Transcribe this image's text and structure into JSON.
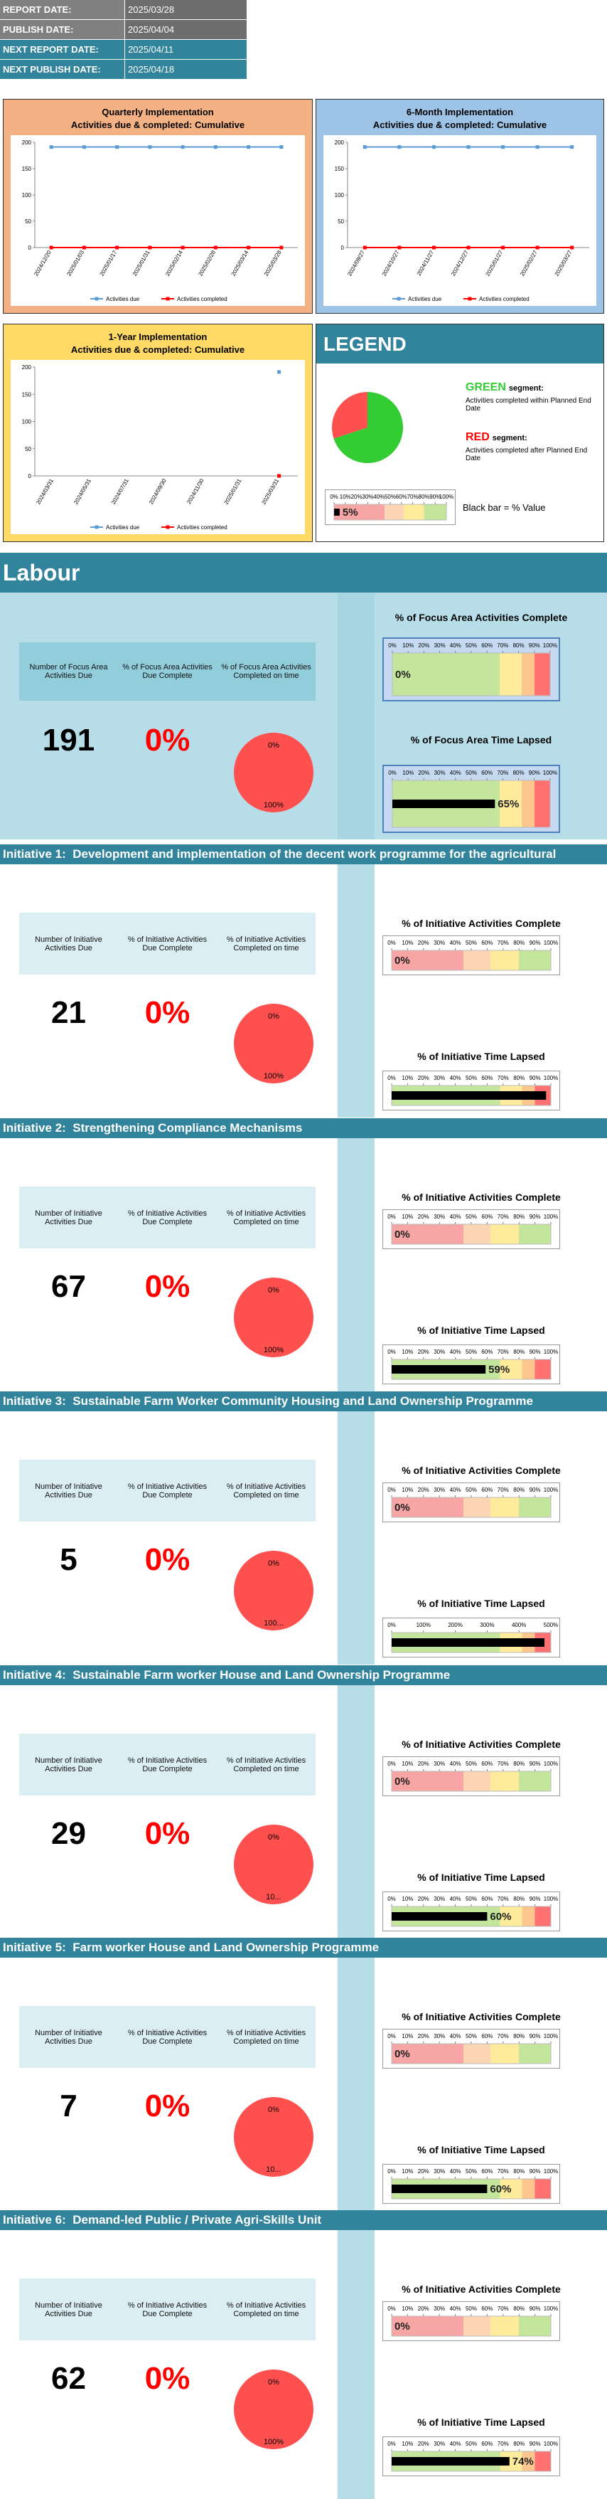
{
  "header": {
    "rows": [
      {
        "label": "REPORT DATE:",
        "value": "2025/03/28"
      },
      {
        "label": "PUBLISH DATE:",
        "value": "2025/04/04"
      },
      {
        "label": "NEXT REPORT DATE:",
        "value": "2025/04/11"
      },
      {
        "label": "NEXT PUBLISH DATE:",
        "value": "2025/04/18"
      }
    ]
  },
  "chart_data": [
    {
      "type": "line",
      "title": "Quarterly Implementation",
      "subtitle": "Activities due & completed: Cumulative",
      "categories": [
        "2024/12/20",
        "2025/01/03",
        "2025/01/17",
        "2025/01/31",
        "2025/02/14",
        "2025/02/28",
        "2025/03/14",
        "2025/03/28"
      ],
      "series": [
        {
          "name": "Activities due",
          "color": "#5b9bd5",
          "values": [
            191,
            191,
            191,
            191,
            191,
            191,
            191,
            191
          ]
        },
        {
          "name": "Activities completed",
          "color": "#ff0000",
          "values": [
            0,
            0,
            0,
            0,
            0,
            0,
            0,
            0
          ]
        }
      ],
      "ylim": [
        0,
        200
      ],
      "yticks": [
        0,
        50,
        100,
        150,
        200
      ]
    },
    {
      "type": "line",
      "title": "6-Month Implementation",
      "subtitle": "Activities due & completed: Cumulative",
      "categories": [
        "2024/09/27",
        "2024/10/27",
        "2024/11/27",
        "2024/12/27",
        "2025/01/27",
        "2025/02/27",
        "2025/03/27"
      ],
      "series": [
        {
          "name": "Activities due",
          "color": "#5b9bd5",
          "values": [
            191,
            191,
            191,
            191,
            191,
            191,
            191
          ]
        },
        {
          "name": "Activities completed",
          "color": "#ff0000",
          "values": [
            0,
            0,
            0,
            0,
            0,
            0,
            0
          ]
        }
      ],
      "ylim": [
        0,
        200
      ],
      "yticks": [
        0,
        50,
        100,
        150,
        200
      ]
    },
    {
      "type": "line",
      "title": "1-Year Implementation",
      "subtitle": "Activities due & completed: Cumulative",
      "categories": [
        "2024/03/31",
        "2024/05/31",
        "2024/07/31",
        "2024/09/30",
        "2024/11/30",
        "2025/01/31",
        "2025/03/31"
      ],
      "series": [
        {
          "name": "Activities due",
          "color": "#5b9bd5",
          "values": [
            null,
            null,
            null,
            null,
            null,
            null,
            191
          ]
        },
        {
          "name": "Activities completed",
          "color": "#ff0000",
          "values": [
            null,
            null,
            null,
            null,
            null,
            null,
            0
          ]
        }
      ],
      "ylim": [
        0,
        200
      ],
      "yticks": [
        0,
        50,
        100,
        150,
        200
      ]
    }
  ],
  "legend": {
    "title": "LEGEND",
    "pie": {
      "values": [
        70,
        30
      ],
      "colors": [
        "#33cc33",
        "#ff5050"
      ]
    },
    "green": {
      "name": "GREEN",
      "suffix": "segment:",
      "text": "Activities completed within Planned End Date"
    },
    "red": {
      "name": "RED",
      "suffix": "segment:",
      "text": "Activities completed after Planned End Date"
    },
    "bar_note": "Black bar = % Value",
    "sample": {
      "value": 5,
      "label": "5%",
      "xlim": [
        0,
        100
      ]
    }
  },
  "percent_ticks": [
    {
      "value": 0,
      "label": "0%"
    },
    {
      "value": 10,
      "label": "10%"
    },
    {
      "value": 20,
      "label": "20%"
    },
    {
      "value": 30,
      "label": "30%"
    },
    {
      "value": 40,
      "label": "40%"
    },
    {
      "value": 50,
      "label": "50%"
    },
    {
      "value": 60,
      "label": "60%"
    },
    {
      "value": 70,
      "label": "70%"
    },
    {
      "value": 80,
      "label": "80%"
    },
    {
      "value": 90,
      "label": "90%"
    },
    {
      "value": 100,
      "label": "100%"
    }
  ],
  "focus": {
    "title": "Labour",
    "headers": [
      "Number of Focus Area Activities Due",
      "% of Focus Area Activities Due Complete",
      "% of Focus Area Activities Completed on time"
    ],
    "gauge_titles": [
      "% of Focus Area Activities Complete",
      "% of Focus Area Time Lapsed"
    ],
    "due": 191,
    "complete": {
      "value": 0,
      "label": "0%"
    },
    "on_time": {
      "values": [
        0,
        100
      ],
      "labels": [
        "0%",
        "100%"
      ],
      "colors": [
        "#33cc33",
        "#ff5050"
      ]
    },
    "activities_complete": {
      "value": 0,
      "label": "0%",
      "xlim": [
        0,
        100
      ]
    },
    "time_lapsed": {
      "value": 65,
      "label": "65%",
      "xlim": [
        0,
        100
      ]
    }
  },
  "initiative_headers": [
    "Number of Initiative Activities Due",
    "% of Initiative Activities Due Complete",
    "% of Initiative Activities Completed on time"
  ],
  "initiative_gauge_titles": [
    "% of Initiative Activities Complete",
    "% of Initiative Time Lapsed"
  ],
  "initiatives": [
    {
      "title": "Initiative 1:  Development and implementation of the decent work programme for the agricultural",
      "due": 21,
      "complete": {
        "value": 0,
        "label": "0%"
      },
      "on_time": {
        "values": [
          0,
          100
        ],
        "labels": [
          "0%",
          "100%"
        ],
        "colors": [
          "#33cc33",
          "#ff5050"
        ]
      },
      "activities_complete": {
        "value": 0,
        "label": "0%",
        "xlim": [
          0,
          100
        ]
      },
      "time_lapsed": {
        "value": 97,
        "xlim": [
          0,
          100
        ]
      }
    },
    {
      "title": "Initiative 2:  Strengthening Compliance Mechanisms",
      "due": 67,
      "complete": {
        "value": 0,
        "label": "0%"
      },
      "on_time": {
        "values": [
          0,
          100
        ],
        "labels": [
          "0%",
          "100%"
        ],
        "colors": [
          "#33cc33",
          "#ff5050"
        ]
      },
      "activities_complete": {
        "value": 0,
        "label": "0%",
        "xlim": [
          0,
          100
        ]
      },
      "time_lapsed": {
        "value": 59,
        "label": "59%",
        "xlim": [
          0,
          100
        ]
      }
    },
    {
      "title": "Initiative 3:  Sustainable Farm Worker Community Housing and Land Ownership Programme",
      "due": 5,
      "complete": {
        "value": 0,
        "label": "0%"
      },
      "on_time": {
        "values": [
          0,
          100
        ],
        "labels": [
          "0%",
          "100..."
        ],
        "colors": [
          "#33cc33",
          "#ff5050"
        ]
      },
      "activities_complete": {
        "value": 0,
        "label": "0%",
        "xlim": [
          0,
          100
        ]
      },
      "time_lapsed": {
        "value": 480,
        "xlim": [
          0,
          500
        ],
        "ticks": [
          {
            "value": 0,
            "label": "0%"
          },
          {
            "value": 100,
            "label": "100%"
          },
          {
            "value": 200,
            "label": "200%"
          },
          {
            "value": 300,
            "label": "300%"
          },
          {
            "value": 400,
            "label": "400%"
          },
          {
            "value": 500,
            "label": "500%"
          }
        ]
      }
    },
    {
      "title": "Initiative 4:  Sustainable Farm worker House and Land Ownership Programme",
      "due": 29,
      "complete": {
        "value": 0,
        "label": "0%"
      },
      "on_time": {
        "values": [
          0,
          100
        ],
        "labels": [
          "0%",
          "10..."
        ],
        "colors": [
          "#33cc33",
          "#ff5050"
        ]
      },
      "activities_complete": {
        "value": 0,
        "label": "0%",
        "xlim": [
          0,
          100
        ]
      },
      "time_lapsed": {
        "value": 60,
        "label": "60%",
        "xlim": [
          0,
          100
        ]
      }
    },
    {
      "title": "Initiative 5:  Farm worker House and Land Ownership Programme",
      "due": 7,
      "complete": {
        "value": 0,
        "label": "0%"
      },
      "on_time": {
        "values": [
          0,
          100
        ],
        "labels": [
          "0%",
          "10..."
        ],
        "colors": [
          "#33cc33",
          "#ff5050"
        ]
      },
      "activities_complete": {
        "value": 0,
        "label": "0%",
        "xlim": [
          0,
          100
        ]
      },
      "time_lapsed": {
        "value": 60,
        "label": "60%",
        "xlim": [
          0,
          100
        ]
      }
    },
    {
      "title": "Initiative 6:  Demand-led Public / Private Agri-Skills Unit",
      "due": 62,
      "complete": {
        "value": 0,
        "label": "0%"
      },
      "on_time": {
        "values": [
          0,
          100
        ],
        "labels": [
          "0%",
          "100%"
        ],
        "colors": [
          "#33cc33",
          "#ff5050"
        ]
      },
      "activities_complete": {
        "value": 0,
        "label": "0%",
        "xlim": [
          0,
          100
        ]
      },
      "time_lapsed": {
        "value": 74,
        "label": "74%",
        "xlim": [
          0,
          100
        ]
      }
    }
  ]
}
